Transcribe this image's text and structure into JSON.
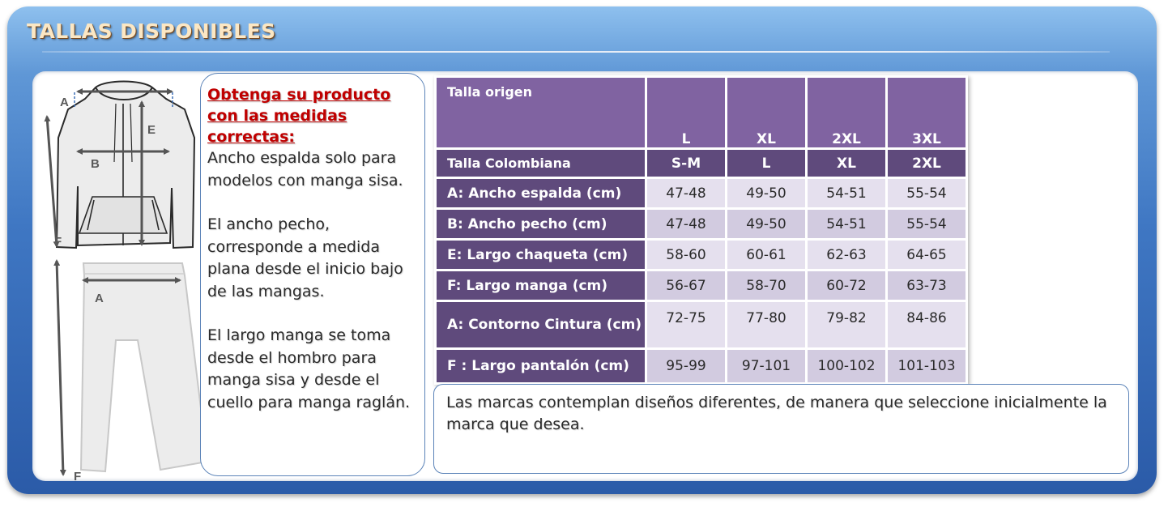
{
  "title": "TALLAS DISPONIBLES",
  "diagram": {
    "labels": {
      "jacket_width": "A",
      "chest": "B",
      "jacket_length": "E",
      "sleeve": "F",
      "pants_waist": "A",
      "pants_length": "F"
    }
  },
  "instructions": {
    "heading": "Obtenga su producto con las medidas correctas:",
    "paragraphs": [
      "Ancho espalda solo para modelos con manga sisa.",
      "El ancho pecho, corresponde a medida plana  desde el inicio bajo de las mangas.",
      "El largo manga se toma desde el hombro para manga sisa y desde el cuello para manga raglán."
    ]
  },
  "size_table": {
    "origin_label": "Talla origen",
    "origin_sizes": [
      "L",
      "XL",
      "2XL",
      "3XL"
    ],
    "colombian_label": "Talla Colombiana",
    "colombian_sizes": [
      "S-M",
      "L",
      "XL",
      "2XL"
    ],
    "rows": [
      {
        "label": "A: Ancho espalda (cm)",
        "values": [
          "47-48",
          "49-50",
          "54-51",
          "55-54"
        ]
      },
      {
        "label": "B: Ancho pecho (cm)",
        "values": [
          "47-48",
          "49-50",
          "54-51",
          "55-54"
        ]
      },
      {
        "label": "E: Largo chaqueta (cm)",
        "values": [
          "58-60",
          "60-61",
          "62-63",
          "64-65"
        ]
      },
      {
        "label": "F: Largo manga (cm)",
        "values": [
          "56-67",
          "58-70",
          "60-72",
          "63-73"
        ]
      },
      {
        "label": "A: Contorno Cintura (cm)",
        "values": [
          "72-75",
          "77-80",
          "79-82",
          "84-86"
        ]
      },
      {
        "label": "F : Largo pantalón (cm)",
        "values": [
          "95-99",
          "97-101",
          "100-102",
          "101-103"
        ]
      }
    ]
  },
  "note": "Las marcas contemplan diseños diferentes, de manera que seleccione inicialmente la marca que desea.",
  "colors": {
    "frame_blue": "#3f77c3",
    "title_text": "#fbe7c4",
    "heading_red": "#c00000",
    "table_header": "#8063a1",
    "table_label": "#5f4a7c",
    "cell_light": "#e5e0ee",
    "cell_dark": "#d2cbe0"
  }
}
